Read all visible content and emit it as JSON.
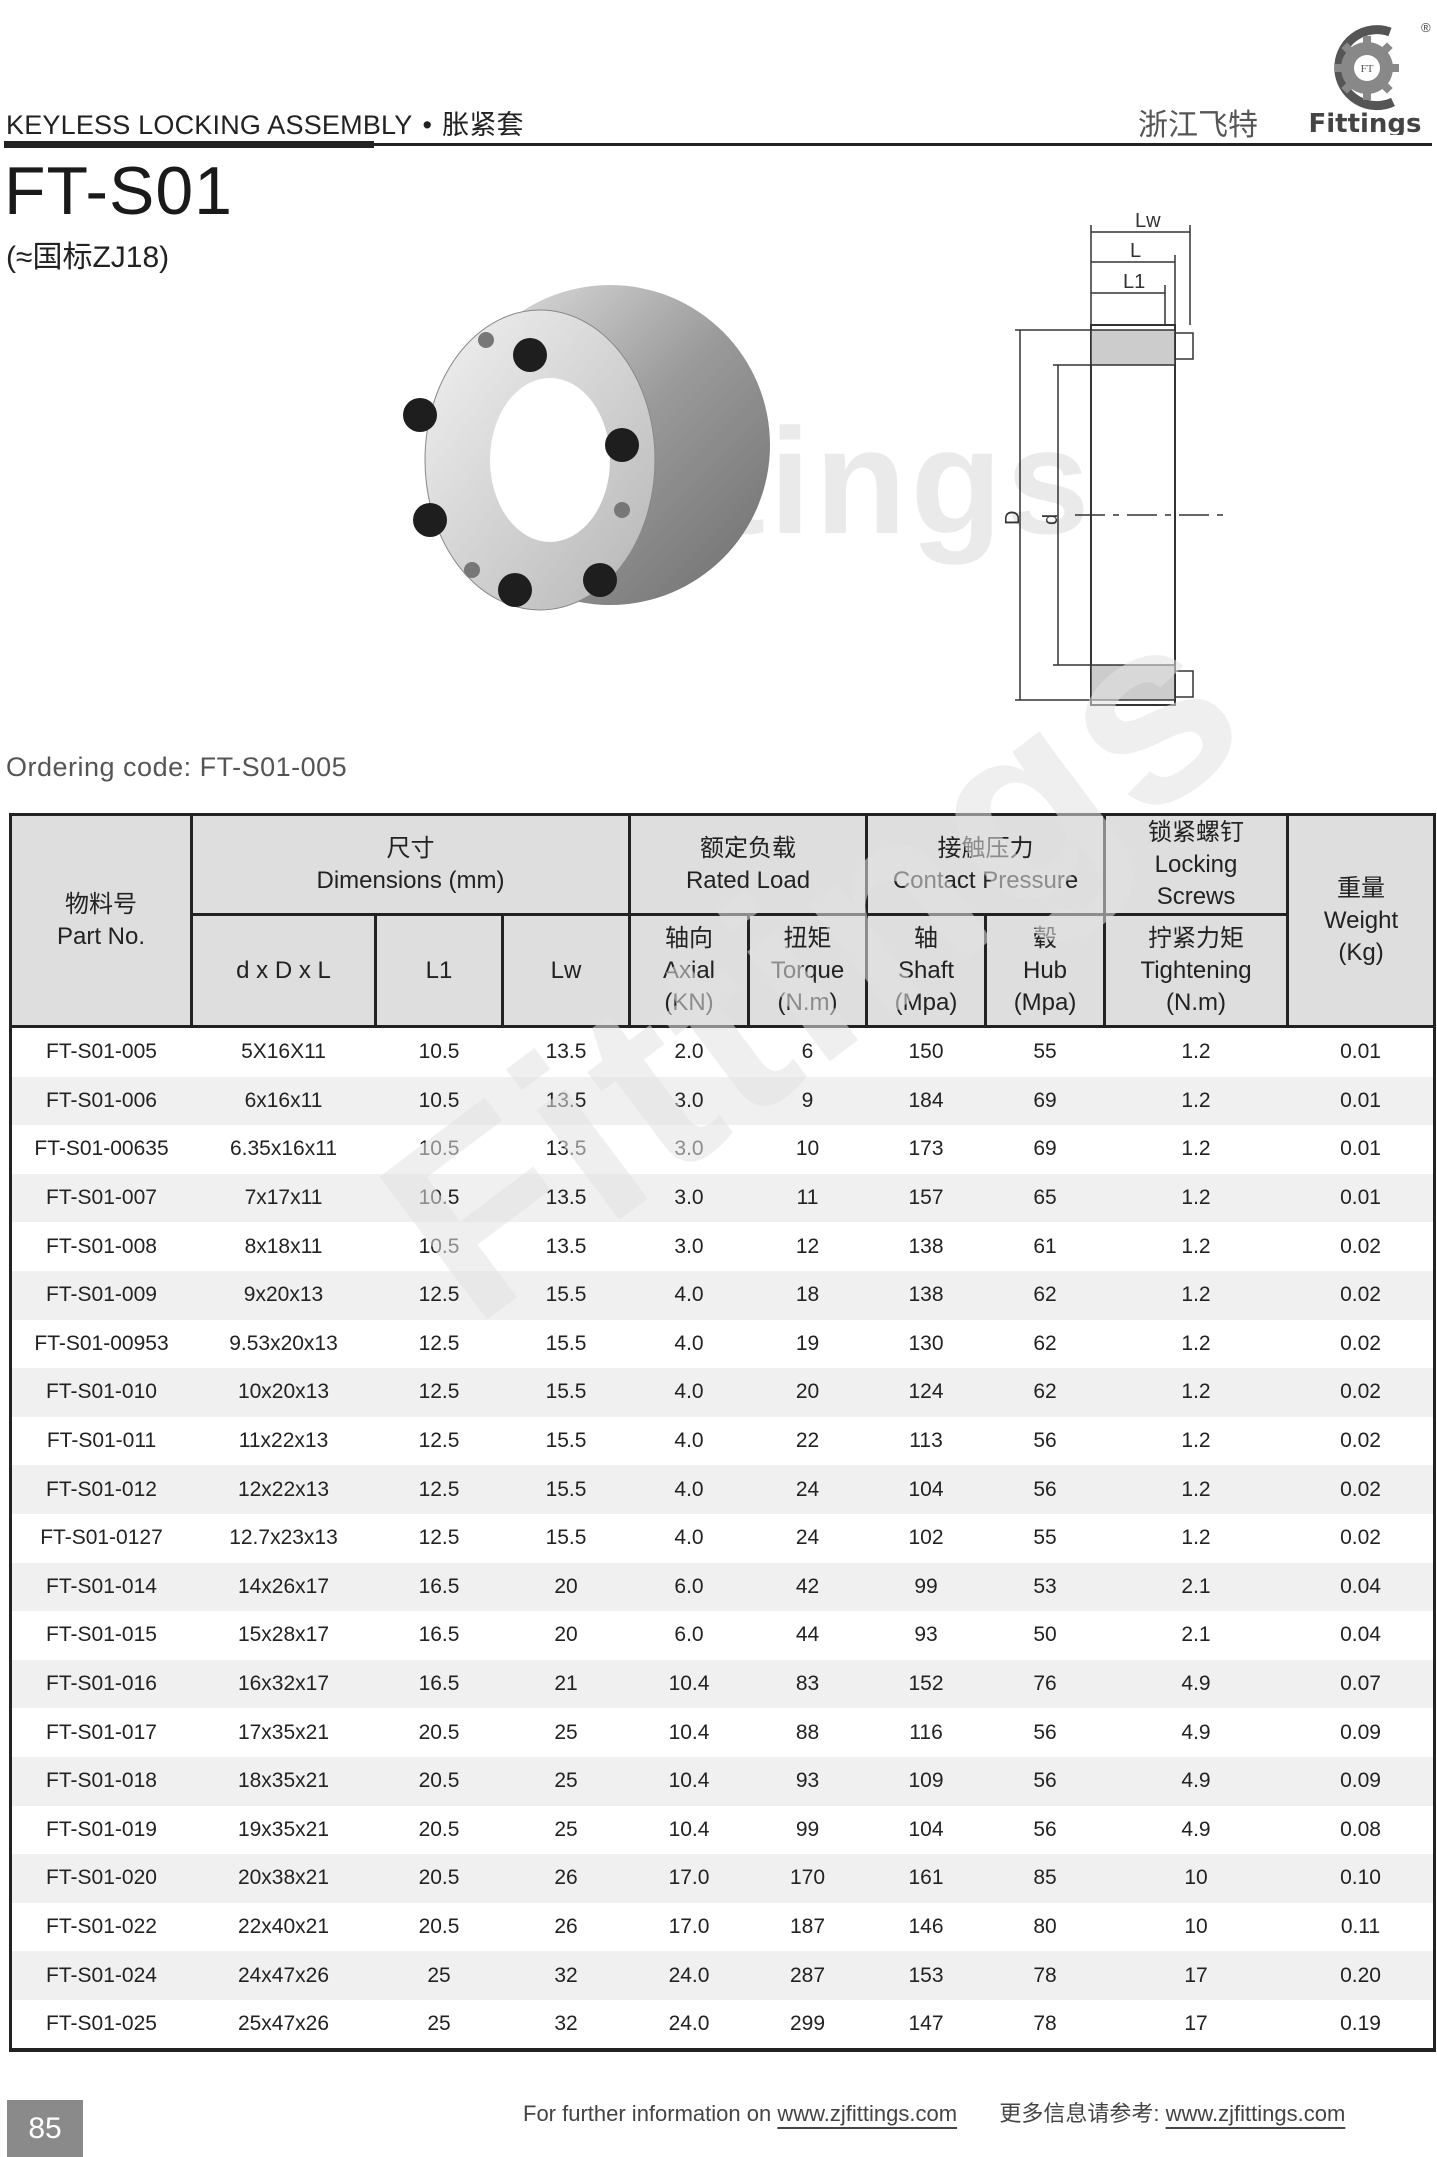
{
  "header": {
    "title_en": "KEYLESS LOCKING ASSEMBLY",
    "separator": "•",
    "title_cn": "胀紧套",
    "brand_cn": "浙江飞特",
    "logo_text": "Fittings",
    "logo_badge": "FT",
    "registered": "®"
  },
  "product": {
    "model": "FT-S01",
    "standard": "(≈国标ZJ18)",
    "watermark": "Fittings"
  },
  "drawing_labels": {
    "lw": "Lw",
    "l": "L",
    "l1": "L1",
    "D": "D",
    "d": "d"
  },
  "ordering_code": "Ordering code: FT-S01-005",
  "table": {
    "headers": {
      "part_no_cn": "物料号",
      "part_no_en": "Part No.",
      "dim_cn": "尺寸",
      "dim_en": "Dimensions (mm)",
      "load_cn": "额定负载",
      "load_en": "Rated Load",
      "pressure_cn": "接触压力",
      "pressure_en": "Contact Pressure",
      "screws_cn": "锁紧螺钉",
      "screws_en1": "Locking",
      "screws_en2": "Screws",
      "weight_cn": "重量",
      "weight_en": "Weight",
      "weight_unit": "(Kg)",
      "dxdxl": "d x D x L",
      "l1": "L1",
      "lw": "Lw",
      "axial_cn": "轴向",
      "axial_en": "Axial",
      "axial_unit": "(KN)",
      "torque_cn": "扭矩",
      "torque_en": "Torque",
      "torque_unit": "(N.m)",
      "shaft_cn": "轴",
      "shaft_en": "Shaft",
      "shaft_unit": "(Mpa)",
      "hub_cn": "毂",
      "hub_en": "Hub",
      "hub_unit": "(Mpa)",
      "tight_cn": "拧紧力矩",
      "tight_en": "Tightening",
      "tight_unit": "(N.m)"
    },
    "rows": [
      [
        "FT-S01-005",
        "5X16X11",
        "10.5",
        "13.5",
        "2.0",
        "6",
        "150",
        "55",
        "1.2",
        "0.01"
      ],
      [
        "FT-S01-006",
        "6x16x11",
        "10.5",
        "13.5",
        "3.0",
        "9",
        "184",
        "69",
        "1.2",
        "0.01"
      ],
      [
        "FT-S01-00635",
        "6.35x16x11",
        "10.5",
        "13.5",
        "3.0",
        "10",
        "173",
        "69",
        "1.2",
        "0.01"
      ],
      [
        "FT-S01-007",
        "7x17x11",
        "10.5",
        "13.5",
        "3.0",
        "11",
        "157",
        "65",
        "1.2",
        "0.01"
      ],
      [
        "FT-S01-008",
        "8x18x11",
        "10.5",
        "13.5",
        "3.0",
        "12",
        "138",
        "61",
        "1.2",
        "0.02"
      ],
      [
        "FT-S01-009",
        "9x20x13",
        "12.5",
        "15.5",
        "4.0",
        "18",
        "138",
        "62",
        "1.2",
        "0.02"
      ],
      [
        "FT-S01-00953",
        "9.53x20x13",
        "12.5",
        "15.5",
        "4.0",
        "19",
        "130",
        "62",
        "1.2",
        "0.02"
      ],
      [
        "FT-S01-010",
        "10x20x13",
        "12.5",
        "15.5",
        "4.0",
        "20",
        "124",
        "62",
        "1.2",
        "0.02"
      ],
      [
        "FT-S01-011",
        "11x22x13",
        "12.5",
        "15.5",
        "4.0",
        "22",
        "113",
        "56",
        "1.2",
        "0.02"
      ],
      [
        "FT-S01-012",
        "12x22x13",
        "12.5",
        "15.5",
        "4.0",
        "24",
        "104",
        "56",
        "1.2",
        "0.02"
      ],
      [
        "FT-S01-0127",
        "12.7x23x13",
        "12.5",
        "15.5",
        "4.0",
        "24",
        "102",
        "55",
        "1.2",
        "0.02"
      ],
      [
        "FT-S01-014",
        "14x26x17",
        "16.5",
        "20",
        "6.0",
        "42",
        "99",
        "53",
        "2.1",
        "0.04"
      ],
      [
        "FT-S01-015",
        "15x28x17",
        "16.5",
        "20",
        "6.0",
        "44",
        "93",
        "50",
        "2.1",
        "0.04"
      ],
      [
        "FT-S01-016",
        "16x32x17",
        "16.5",
        "21",
        "10.4",
        "83",
        "152",
        "76",
        "4.9",
        "0.07"
      ],
      [
        "FT-S01-017",
        "17x35x21",
        "20.5",
        "25",
        "10.4",
        "88",
        "116",
        "56",
        "4.9",
        "0.09"
      ],
      [
        "FT-S01-018",
        "18x35x21",
        "20.5",
        "25",
        "10.4",
        "93",
        "109",
        "56",
        "4.9",
        "0.09"
      ],
      [
        "FT-S01-019",
        "19x35x21",
        "20.5",
        "25",
        "10.4",
        "99",
        "104",
        "56",
        "4.9",
        "0.08"
      ],
      [
        "FT-S01-020",
        "20x38x21",
        "20.5",
        "26",
        "17.0",
        "170",
        "161",
        "85",
        "10",
        "0.10"
      ],
      [
        "FT-S01-022",
        "22x40x21",
        "20.5",
        "26",
        "17.0",
        "187",
        "146",
        "80",
        "10",
        "0.11"
      ],
      [
        "FT-S01-024",
        "24x47x26",
        "25",
        "32",
        "24.0",
        "287",
        "153",
        "78",
        "17",
        "0.20"
      ],
      [
        "FT-S01-025",
        "25x47x26",
        "25",
        "32",
        "24.0",
        "299",
        "147",
        "78",
        "17",
        "0.19"
      ]
    ]
  },
  "footer": {
    "page_number": "85",
    "info_en": "For further information on",
    "url_en": "www.zjfittings.com",
    "info_cn": "更多信息请参考:",
    "url_cn": "www.zjfittings.com"
  },
  "colors": {
    "header_bg": "#dedede",
    "stripe": "#f0f0f0",
    "rule": "#222222",
    "page_box": "#8a8a8a"
  }
}
